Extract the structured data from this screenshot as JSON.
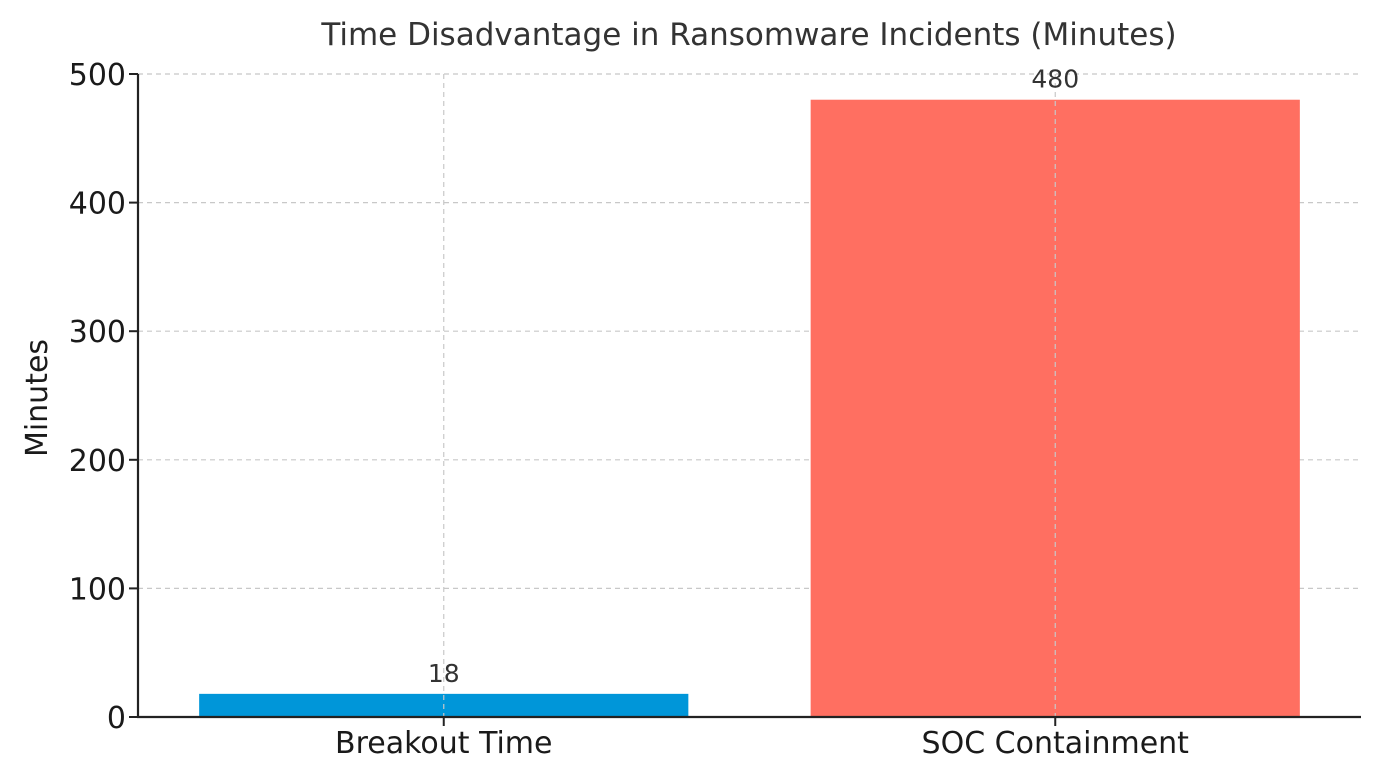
{
  "chart_data": {
    "type": "bar",
    "title": "Time Disadvantage in Ransomware Incidents (Minutes)",
    "xlabel": "",
    "ylabel": "Minutes",
    "categories": [
      "Breakout Time",
      "SOC Containment"
    ],
    "values": [
      18,
      480
    ],
    "value_labels": [
      "18",
      "480"
    ],
    "colors": [
      "#0096d9",
      "#ff6f61"
    ],
    "ylim": [
      0,
      500
    ],
    "yticks": [
      0,
      100,
      200,
      300,
      400,
      500
    ],
    "ytick_labels": [
      "0",
      "100",
      "200",
      "300",
      "400",
      "500"
    ],
    "grid": true
  }
}
